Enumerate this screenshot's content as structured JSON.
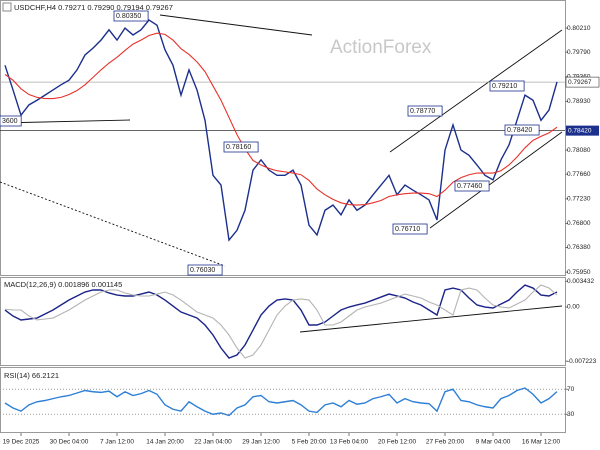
{
  "chart_data": [
    {
      "type": "line",
      "title": "USDCHF,H4 0.79271 0.79290 0.79194 0.79267",
      "watermark": "ActionForex",
      "categories": [
        null,
        null,
        "19 Dec 2025",
        null,
        null,
        null,
        null,
        null,
        "30 Dec 04:00",
        null,
        null,
        null,
        null,
        null,
        "7 Jan 12:00",
        null,
        null,
        null,
        null,
        null,
        "14 Jan 20:00",
        null,
        null,
        null,
        null,
        null,
        "22 Jan 04:00",
        null,
        null,
        null,
        null,
        null,
        "29 Jan 12:00",
        null,
        null,
        null,
        null,
        null,
        "5 Feb 20:00",
        null,
        null,
        null,
        null,
        "13 Feb 04:00",
        null,
        null,
        null,
        null,
        null,
        "20 Feb 12:00",
        null,
        null,
        null,
        null,
        null,
        "27 Feb 20:00",
        null,
        null,
        null,
        null,
        null,
        "9 Mar 04:00",
        null,
        null,
        null,
        null,
        null,
        "16 Mar 12:00",
        null,
        null
      ],
      "series": [
        {
          "color": "#1b2f8c",
          "values": [
            0.7956,
            0.7913,
            0.7869,
            0.7887,
            0.7895,
            0.7904,
            0.7913,
            0.7922,
            0.793,
            0.7948,
            0.7974,
            0.7986,
            0.8,
            0.8018,
            0.8,
            0.8021,
            0.8009,
            0.8018,
            0.8035,
            0.8026,
            0.7983,
            0.7956,
            0.7904,
            0.7948,
            0.7913,
            0.786,
            0.7764,
            0.7747,
            0.7651,
            0.7668,
            0.7703,
            0.7773,
            0.7791,
            0.7773,
            0.7764,
            0.7764,
            0.7773,
            0.7747,
            0.7677,
            0.766,
            0.7703,
            0.7712,
            0.7695,
            0.7721,
            0.7703,
            0.7712,
            0.773,
            0.7747,
            0.7764,
            0.773,
            0.7747,
            0.7738,
            0.773,
            0.7721,
            0.7686,
            0.7808,
            0.7852,
            0.7808,
            0.7799,
            0.7782,
            0.7764,
            0.7756,
            0.7791,
            0.7817,
            0.786,
            0.7904,
            0.7895,
            0.786,
            0.7878,
            0.7927
          ]
        },
        {
          "color": "#e8312a",
          "values": [
            0.794,
            0.793,
            0.7915,
            0.7905,
            0.79,
            0.7898,
            0.7898,
            0.79,
            0.7905,
            0.7912,
            0.7922,
            0.7935,
            0.7948,
            0.796,
            0.797,
            0.7982,
            0.7993,
            0.8,
            0.8008,
            0.8012,
            0.801,
            0.8,
            0.7985,
            0.7975,
            0.7962,
            0.7945,
            0.792,
            0.7895,
            0.7865,
            0.7835,
            0.781,
            0.779,
            0.7782,
            0.7776,
            0.7772,
            0.777,
            0.7768,
            0.7765,
            0.7755,
            0.774,
            0.773,
            0.7722,
            0.7716,
            0.7713,
            0.7712,
            0.7713,
            0.7716,
            0.772,
            0.7727,
            0.773,
            0.7732,
            0.7733,
            0.7733,
            0.7732,
            0.7727,
            0.7738,
            0.7752,
            0.776,
            0.7765,
            0.7768,
            0.7768,
            0.7768,
            0.7772,
            0.7782,
            0.7796,
            0.7812,
            0.7825,
            0.7832,
            0.7838,
            0.7848
          ]
        }
      ],
      "ylim": [
        0.759,
        0.807
      ],
      "yticks": [
        {
          "value": 0.8021,
          "label": "0.80210"
        },
        {
          "value": 0.7979,
          "label": "0.79790"
        },
        {
          "value": 0.7936,
          "label": "0.79360"
        },
        {
          "value": 0.7893,
          "label": "0.78930"
        },
        {
          "value": 0.7808,
          "label": "0.78080"
        },
        {
          "value": 0.7766,
          "label": "0.77660"
        },
        {
          "value": 0.7723,
          "label": "0.77230"
        },
        {
          "value": 0.768,
          "label": "0.76800"
        },
        {
          "value": 0.7638,
          "label": "0.76380"
        },
        {
          "value": 0.7595,
          "label": "0.75950"
        }
      ],
      "last_price": 0.79267,
      "level": {
        "value": 0.7842,
        "label": "0.78420"
      },
      "annotations": [
        "0.80350",
        "0.76030",
        "0.78160",
        "0.78770",
        "0.79210",
        "0.78420",
        "0.77460",
        "0.76710",
        "3600"
      ]
    },
    {
      "type": "line",
      "title": "MACD(12,26,9) 0.001896 0.001145",
      "series": [
        {
          "color": "#1b2389",
          "values": [
            -0.0004,
            -0.0012,
            -0.00173,
            -0.0016,
            -0.00147,
            -0.00093,
            -0.0004,
            0.00027,
            0.00093,
            0.00147,
            0.002,
            0.00227,
            0.00227,
            0.00187,
            0.0016,
            0.00147,
            0.00147,
            0.00173,
            0.002,
            0.0016,
            0.00093,
            0.00013,
            -0.00067,
            -0.00107,
            -0.00147,
            -0.0024,
            -0.00373,
            -0.00547,
            -0.0068,
            -0.0064,
            -0.00507,
            -0.00307,
            -0.00107,
            0.00013,
            0.00093,
            0.00107,
            0.00093,
            -0.0004,
            -0.0024,
            -0.0024,
            -0.002,
            -0.0012,
            -0.0004,
            0,
            0.00027,
            0.00053,
            0.00093,
            0.00133,
            0.00173,
            0.00147,
            0.0012,
            0.00067,
            0.00027,
            -0.0004,
            -0.00107,
            0.00227,
            0.00253,
            0.00227,
            0.0012,
            0.00027,
            0,
            -0.00013,
            0.0004,
            0.00093,
            0.002,
            0.00293,
            0.00253,
            0.0016,
            0.00147,
            0.002
          ]
        },
        {
          "color": "#b4b4b4",
          "values": [
            -0.0003,
            -0.0004,
            -0.0004,
            -0.0012,
            -0.00173,
            -0.0016,
            -0.00147,
            -0.00093,
            -0.0004,
            0.00027,
            0.00093,
            0.00147,
            0.002,
            0.00227,
            0.00227,
            0.00187,
            0.0016,
            0.00147,
            0.00147,
            0.00173,
            0.002,
            0.0016,
            0.00093,
            0.00013,
            -0.00067,
            -0.00107,
            -0.00147,
            -0.0024,
            -0.00373,
            -0.00547,
            -0.0068,
            -0.0064,
            -0.00507,
            -0.00307,
            -0.00107,
            0.00013,
            0.00093,
            0.00107,
            0.00093,
            -0.0004,
            -0.0024,
            -0.0024,
            -0.002,
            -0.0012,
            -0.0004,
            0,
            0.00027,
            0.00053,
            0.00093,
            0.00133,
            0.00173,
            0.00147,
            0.0012,
            0.00067,
            0.00027,
            -0.0004,
            -0.00107,
            0.00227,
            0.00253,
            0.00227,
            0.0012,
            0.00027,
            0,
            -0.00013,
            0.0004,
            0.00093,
            0.002,
            0.00293,
            0.00253,
            0.0016
          ]
        }
      ],
      "ylim": [
        -0.00787,
        0.00387
      ],
      "yticks": [
        0.003432,
        {
          "value": 0,
          "label": "0.00"
        },
        -0.007223
      ]
    },
    {
      "type": "line",
      "title": "RSI(14) 66.2121",
      "series": [
        {
          "color": "#2d7fd6",
          "values": [
            48,
            40,
            35,
            45,
            50,
            52,
            55,
            58,
            60,
            64,
            68,
            66,
            65,
            67,
            58,
            66,
            60,
            63,
            68,
            62,
            45,
            38,
            35,
            50,
            42,
            35,
            30,
            32,
            28,
            40,
            45,
            58,
            60,
            50,
            48,
            50,
            52,
            45,
            35,
            33,
            45,
            48,
            42,
            52,
            46,
            48,
            55,
            58,
            62,
            48,
            55,
            50,
            48,
            47,
            35,
            66,
            70,
            52,
            50,
            45,
            42,
            40,
            55,
            60,
            68,
            72,
            62,
            48,
            55,
            66.2
          ]
        }
      ],
      "ylim": [
        0,
        104
      ],
      "yticks": [
        70,
        30
      ]
    }
  ]
}
